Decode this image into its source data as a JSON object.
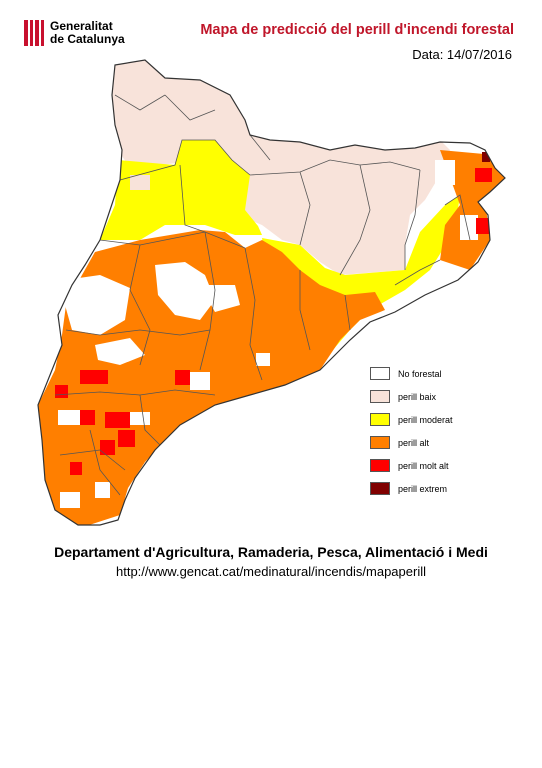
{
  "header": {
    "logo_line1": "Generalitat",
    "logo_line2": "de Catalunya",
    "title": "Mapa de predicció del perill d'incendi forestal",
    "date": "Data: 14/07/2016"
  },
  "legend": [
    {
      "label": "No forestal",
      "color": "#ffffff"
    },
    {
      "label": "perill baix",
      "color": "#f8e3da"
    },
    {
      "label": "perill moderat",
      "color": "#ffff00"
    },
    {
      "label": "perill alt",
      "color": "#ff7f00"
    },
    {
      "label": "perill molt alt",
      "color": "#ff0000"
    },
    {
      "label": "perill extrem",
      "color": "#800000"
    }
  ],
  "footer": {
    "department": "Departament d'Agricultura, Ramaderia, Pesca, Alimentació i Medi",
    "url": "http://www.gencat.cat/medinatural/incendis/mapaperill"
  }
}
